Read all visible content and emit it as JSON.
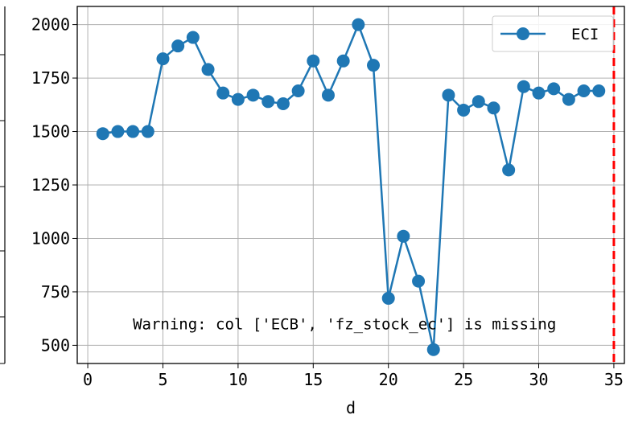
{
  "chart_data": {
    "type": "line",
    "xlabel": "d",
    "ylabel": "",
    "xlim": [
      -0.7,
      35.7
    ],
    "ylim": [
      415,
      2085
    ],
    "x_ticks": [
      0,
      5,
      10,
      15,
      20,
      25,
      30,
      35
    ],
    "y_ticks": [
      500,
      750,
      1000,
      1250,
      1500,
      1750,
      2000
    ],
    "grid": true,
    "legend_position": "top-right",
    "series": [
      {
        "name": "ECI",
        "color": "#1f77b4",
        "marker": "circle",
        "x": [
          1,
          2,
          3,
          4,
          5,
          6,
          7,
          8,
          9,
          10,
          11,
          12,
          13,
          14,
          15,
          16,
          17,
          18,
          19,
          20,
          21,
          22,
          23,
          24,
          25,
          26,
          27,
          28,
          29,
          30,
          31,
          32,
          33,
          34
        ],
        "y": [
          1490,
          1500,
          1500,
          1500,
          1840,
          1900,
          1940,
          1790,
          1680,
          1650,
          1670,
          1640,
          1630,
          1690,
          1830,
          1670,
          1830,
          2000,
          1810,
          720,
          1010,
          800,
          480,
          1670,
          1600,
          1640,
          1610,
          1320,
          1710,
          1680,
          1700,
          1650,
          1690,
          1690
        ]
      }
    ],
    "vline": {
      "x": 35,
      "color": "#ff0000",
      "style": "dashed"
    },
    "annotation": {
      "text": "Warning: col ['ECB', 'fz_stock_ec'] is missing",
      "x": 3,
      "y": 575
    }
  }
}
